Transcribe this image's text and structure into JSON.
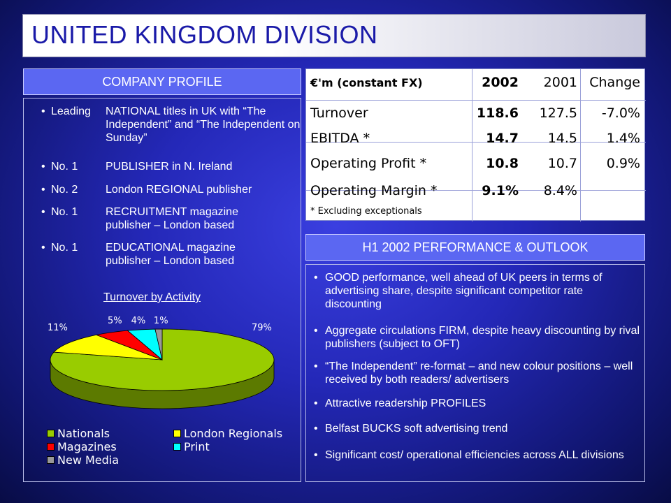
{
  "title": "UNITED KINGDOM DIVISION",
  "profile": {
    "header": "COMPANY PROFILE",
    "bullets": [
      {
        "key": "Leading",
        "text": "NATIONAL titles in UK with “The Independent” and “The Independent on Sunday”"
      },
      {
        "key": "No. 1",
        "text": "PUBLISHER in N. Ireland"
      },
      {
        "key": "No. 2",
        "text": "London REGIONAL publisher"
      },
      {
        "key": "No. 1",
        "text": "RECRUITMENT magazine publisher – London based"
      },
      {
        "key": "No. 1",
        "text": "EDUCATIONAL magazine publisher – London based"
      }
    ]
  },
  "chart_data": {
    "type": "pie",
    "title": "Turnover by Activity",
    "series": [
      {
        "name": "Nationals",
        "value": 79,
        "label": "79%",
        "color": "#99cc00"
      },
      {
        "name": "London Regionals",
        "value": 11,
        "label": "11%",
        "color": "#ffff00"
      },
      {
        "name": "Magazines",
        "value": 5,
        "label": "5%",
        "color": "#ff0000"
      },
      {
        "name": "Print",
        "value": 4,
        "label": "4%",
        "color": "#00ffff"
      },
      {
        "name": "New Media",
        "value": 1,
        "label": "1%",
        "color": "#999999"
      }
    ],
    "legend": "bottom"
  },
  "financials": {
    "header_label": "€'m (constant FX)",
    "col_2002": "2002",
    "col_2001": "2001",
    "col_change": "Change",
    "rows": [
      {
        "label": "Turnover",
        "v2002": "118.6",
        "v2001": "127.5",
        "change": "-7.0%"
      },
      {
        "label": "EBITDA *",
        "v2002": "14.7",
        "v2001": "14.5",
        "change": "1.4%"
      },
      {
        "label": "Operating Profit *",
        "v2002": "10.8",
        "v2001": "10.7",
        "change": "0.9%"
      },
      {
        "label": "Operating Margin *",
        "v2002": "9.1%",
        "v2001": "8.4%",
        "change": ""
      }
    ],
    "footnote": "* Excluding exceptionals"
  },
  "outlook": {
    "header": "H1 2002 PERFORMANCE & OUTLOOK",
    "bullets": [
      "GOOD performance, well ahead of UK peers in terms of advertising share, despite significant competitor rate discounting",
      "Aggregate circulations FIRM, despite heavy discounting by rival publishers (subject to OFT)",
      "“The Independent” re-format – and new colour positions – well received by both readers/ advertisers",
      "Attractive readership PROFILES",
      "Belfast BUCKS soft advertising trend",
      "Significant cost/ operational efficiencies across ALL divisions"
    ]
  }
}
